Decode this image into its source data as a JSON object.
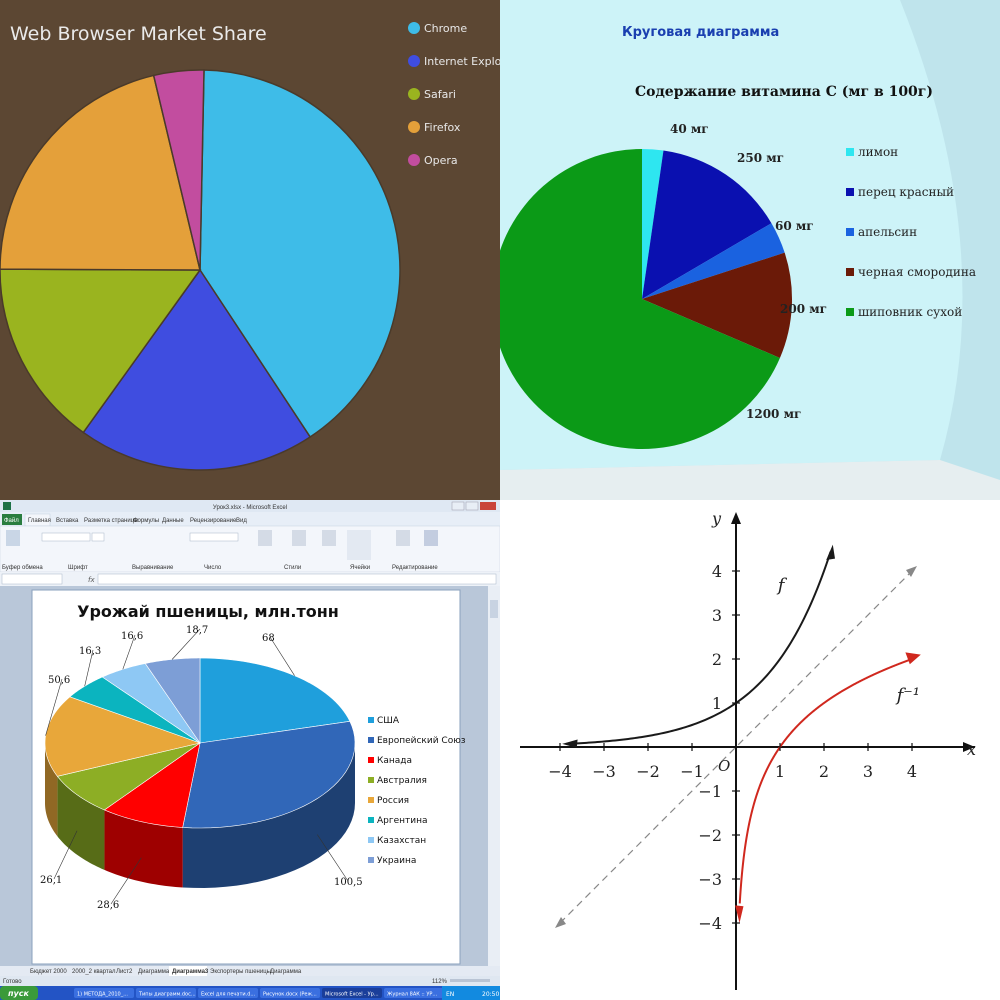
{
  "chart_data": [
    {
      "type": "pie",
      "title": "Web Browser Market Share",
      "categories": [
        "Chrome",
        "Internet Explorer",
        "Safari",
        "Firefox",
        "Opera"
      ],
      "values": [
        40,
        19,
        15,
        21,
        4
      ],
      "colors": [
        "#3ebce8",
        "#3f4de0",
        "#9ab41f",
        "#e4a03a",
        "#c24d9f"
      ],
      "legend": "right"
    },
    {
      "type": "pie",
      "heading": "Круговая диаграмма",
      "title": "Содержание витамина С (мг в 100г)",
      "categories": [
        "лимон",
        "перец красный",
        "апельсин",
        "черная смородина",
        "шиповник сухой"
      ],
      "values": [
        40,
        250,
        60,
        200,
        1200
      ],
      "data_labels": [
        "40 мг",
        "250 мг",
        "60 мг",
        "200 мг",
        "1200 мг"
      ],
      "colors": [
        "#2ee6f0",
        "#0a10b0",
        "#1a62e0",
        "#6b1a08",
        "#0b9a17"
      ],
      "legend": "right"
    },
    {
      "type": "pie",
      "title": "Урожай пшеницы, млн.тонн",
      "categories": [
        "США",
        "Европейский Союз",
        "Канада",
        "Австралия",
        "Россия",
        "Аргентина",
        "Казахстан",
        "Украина"
      ],
      "values": [
        68,
        100.5,
        28.6,
        26.1,
        50.6,
        16.3,
        16.6,
        18.7
      ],
      "data_labels": [
        "68",
        "100,5",
        "28,6",
        "26,1",
        "50,6",
        "16,3",
        "16,6",
        "18,7"
      ],
      "colors": [
        "#1f9fdc",
        "#3167b8",
        "#ff0000",
        "#8dae25",
        "#e8a73a",
        "#0bb4bf",
        "#8ec8f4",
        "#7d9ed6"
      ],
      "legend": "right"
    },
    {
      "type": "line",
      "xlabel": "x",
      "ylabel": "y",
      "xlim": [
        -4.5,
        5.2
      ],
      "ylim": [
        -4.6,
        5.2
      ],
      "x_ticks": [
        "−4",
        "−3",
        "−2",
        "−1",
        "1",
        "2",
        "3",
        "4"
      ],
      "y_ticks": [
        "4",
        "3",
        "2",
        "1",
        "−1",
        "−2",
        "−3",
        "−4"
      ],
      "origin_label": "O",
      "series": [
        {
          "name": "f",
          "color": "#1a1a1a",
          "x": [
            -4,
            -3,
            -2,
            -1,
            0,
            1,
            2,
            2.2
          ],
          "y": [
            0.06,
            0.13,
            0.25,
            0.5,
            1,
            2,
            4,
            4.6
          ]
        },
        {
          "name": "f⁻¹",
          "color": "#d0281e",
          "x": [
            0.08,
            0.13,
            0.25,
            0.5,
            1,
            2,
            4
          ],
          "y": [
            -3.6,
            -3,
            -2,
            -1,
            0,
            1,
            2
          ]
        },
        {
          "name": "y = x",
          "color": "#888888",
          "x": [
            -4,
            4
          ],
          "y": [
            -4,
            4
          ]
        }
      ]
    }
  ],
  "excel": {
    "title": "Урок3.xlsx - Microsoft Excel",
    "tabs": [
      "Файл",
      "Главная",
      "Вставка",
      "Разметка страницы",
      "Формулы",
      "Данные",
      "Рецензирование",
      "Вид"
    ],
    "groups": [
      "Буфер обмена",
      "Шрифт",
      "Выравнивание",
      "Число",
      "Стили",
      "Ячейки",
      "Редактирование"
    ],
    "sheets": [
      "Бюджет 2000",
      "2000_2 квартал",
      "Лист2",
      "Диаграмма1",
      "Диаграмма3",
      "Экспортеры пшеницы",
      "Диаграмма"
    ],
    "status": "Готово",
    "zoom": "112%",
    "taskbar_start": "пуск",
    "taskbar_items": [
      "1) МЕТОДА_2010_...",
      "Типы диаграмм.doc...",
      "Excel для печати.d...",
      "Рисунок.docx (Реж...",
      "Microsoft Excel - Ур...",
      "Журнал 8АК :: УР..."
    ],
    "lang": "EN",
    "clock": "20:50"
  }
}
